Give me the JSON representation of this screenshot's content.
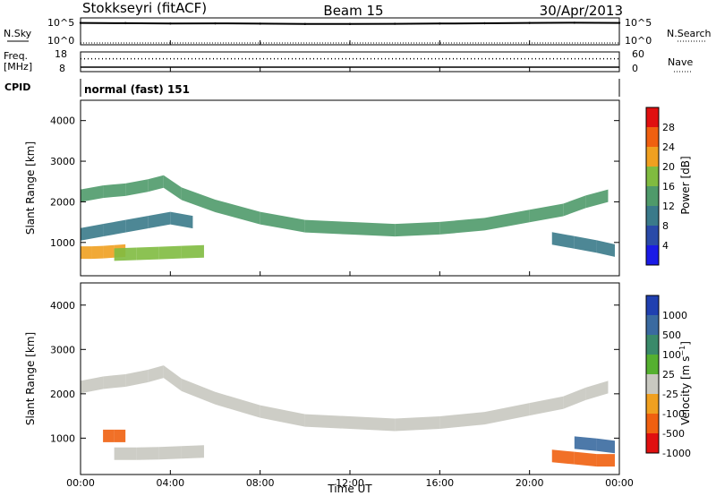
{
  "header": {
    "station": "Stokkseyri (fitACF)",
    "beam": "Beam 15",
    "date": "30/Apr/2013",
    "cpid_value": "normal (fast) 151"
  },
  "small_panels": {
    "nsky_label": "N.Sky",
    "nsky_ticks": [
      "10^5",
      "10^0"
    ],
    "nsearch_label": "N.Search",
    "nsearch_ticks": [
      "10^5",
      "10^0"
    ],
    "freq_label": "Freq.",
    "freq_unit": "[MHz]",
    "freq_ticks": [
      "18",
      "8"
    ],
    "nave_label": "Nave",
    "nave_ticks": [
      "60",
      "0"
    ],
    "cpid_label": "CPID"
  },
  "colors": {
    "power_scale": [
      "#1a1ae6",
      "#2a4aa8",
      "#3a7a8a",
      "#4f9a6a",
      "#80bb40",
      "#f0a020",
      "#f06010",
      "#e01010"
    ],
    "velocity_scale": [
      "#2040b0",
      "#3a6aa0",
      "#3a8a6a",
      "#55b030",
      "#c8c8c0",
      "#f0a020",
      "#f06010",
      "#e01010"
    ]
  },
  "chart_data": [
    {
      "type": "line",
      "panel": "N.Sky / N.Search",
      "x_range": [
        "00:00",
        "00:00"
      ],
      "y_scale": "log",
      "series": [
        {
          "name": "N.Sky",
          "x": [
            "00:00",
            "02:00",
            "04:00",
            "06:00",
            "08:00",
            "10:00",
            "12:00",
            "14:00",
            "16:00",
            "18:00",
            "20:00",
            "22:00",
            "00:00"
          ],
          "values": [
            20000,
            18000,
            15000,
            16000,
            14000,
            12000,
            12000,
            13000,
            15000,
            17000,
            20000,
            22000,
            20000
          ]
        },
        {
          "name": "N.Search",
          "x": [
            "00:00",
            "06:00",
            "12:00",
            "18:00",
            "00:00"
          ],
          "values": [
            1,
            1,
            1,
            1,
            1
          ]
        }
      ]
    },
    {
      "type": "line",
      "panel": "Freq. / Nave",
      "x_range": [
        "00:00",
        "00:00"
      ],
      "series": [
        {
          "name": "Freq.",
          "unit": "MHz",
          "x": [
            "00:00",
            "12:00",
            "00:00"
          ],
          "values": [
            10,
            10,
            10
          ]
        },
        {
          "name": "Nave",
          "x": [
            "00:00",
            "12:00",
            "00:00"
          ],
          "values": [
            40,
            40,
            40
          ]
        }
      ],
      "y_ranges": {
        "Freq.": [
          8,
          18
        ],
        "Nave": [
          0,
          60
        ]
      }
    },
    {
      "type": "heatmap",
      "panel": "Power",
      "xlabel": "Time UT",
      "ylabel": "Slant Range [km]",
      "colorbar_label": "Power [dB]",
      "x_range": [
        "00:00",
        "00:00"
      ],
      "x_ticks": [
        "00:00",
        "04:00",
        "08:00",
        "12:00",
        "16:00",
        "20:00",
        "00:00"
      ],
      "ylim": [
        180,
        4500
      ],
      "y_ticks": [
        1000,
        2000,
        3000,
        4000
      ],
      "colorbar_ticks": [
        4,
        8,
        12,
        16,
        20,
        24,
        28
      ],
      "bands": [
        {
          "x": [
            0,
            1,
            2,
            3,
            3.7,
            4.5,
            6,
            8,
            10,
            12,
            14,
            16,
            18,
            20,
            21.5,
            22.5,
            23.5
          ],
          "y": [
            2150,
            2250,
            2300,
            2400,
            2500,
            2200,
            1900,
            1600,
            1400,
            1350,
            1300,
            1350,
            1450,
            1650,
            1800,
            2000,
            2150
          ],
          "value": 14
        },
        {
          "x": [
            0,
            1,
            2,
            3,
            4,
            5
          ],
          "y": [
            1200,
            1300,
            1400,
            1500,
            1600,
            1500
          ],
          "value": 9
        },
        {
          "x": [
            0,
            0.5,
            1,
            1.5,
            2
          ],
          "y": [
            750,
            750,
            760,
            780,
            800
          ],
          "value": 24
        },
        {
          "x": [
            1.5,
            2.5,
            3.5,
            4.5,
            5.5
          ],
          "y": [
            700,
            720,
            740,
            760,
            780
          ],
          "value": 20
        },
        {
          "x": [
            21,
            22,
            23,
            23.8
          ],
          "y": [
            1100,
            1000,
            900,
            800
          ],
          "value": 12
        }
      ]
    },
    {
      "type": "heatmap",
      "panel": "Velocity",
      "xlabel": "Time UT",
      "ylabel": "Slant Range [km]",
      "colorbar_label": "Velocity [m s^-1]",
      "x_range": [
        "00:00",
        "00:00"
      ],
      "x_ticks": [
        "00:00",
        "04:00",
        "08:00",
        "12:00",
        "16:00",
        "20:00",
        "00:00"
      ],
      "ylim": [
        180,
        4500
      ],
      "y_ticks": [
        1000,
        2000,
        3000,
        4000
      ],
      "colorbar_ticks": [
        "1000",
        "500",
        "100",
        "25",
        "-25",
        "-100",
        "-500",
        "-1000"
      ],
      "bands": [
        {
          "x": [
            0,
            1,
            2,
            3,
            3.7,
            4.5,
            6,
            8,
            10,
            12,
            14,
            16,
            18,
            20,
            21.5,
            22.5,
            23.5
          ],
          "y": [
            2150,
            2250,
            2300,
            2400,
            2500,
            2200,
            1900,
            1600,
            1400,
            1350,
            1300,
            1350,
            1450,
            1650,
            1800,
            2000,
            2150
          ],
          "value": 0
        },
        {
          "x": [
            1.5,
            2.5,
            3.5,
            4.5,
            5.5
          ],
          "y": [
            650,
            650,
            660,
            680,
            700
          ],
          "value": 0
        },
        {
          "x": [
            1.0,
            1.5,
            2.0
          ],
          "y": [
            1050,
            1050,
            1050
          ],
          "value": -150
        },
        {
          "x": [
            21,
            22,
            23,
            23.8
          ],
          "y": [
            600,
            550,
            500,
            500
          ],
          "value": -200
        },
        {
          "x": [
            22,
            23,
            23.8
          ],
          "y": [
            900,
            850,
            800
          ],
          "value": 600
        }
      ]
    }
  ],
  "time_label": "Time UT"
}
